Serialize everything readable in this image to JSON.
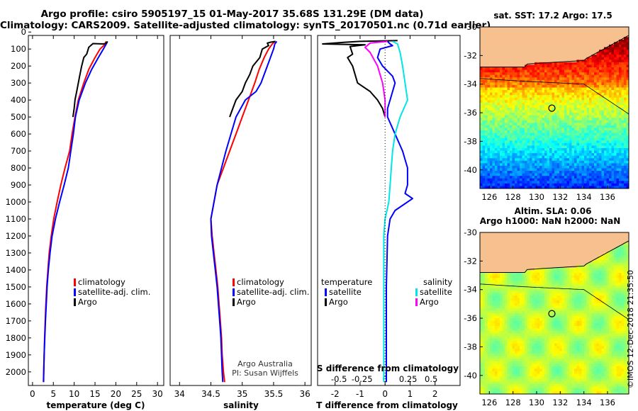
{
  "header": {
    "line1": "Argo profile: csiro 5905197_15 01-May-2017 35.68S 131.29E (DM data)",
    "line2": "Climatology: CARS2009. Satellite-adjusted climatology: synTS_20170501.nc (0.71d earlier)"
  },
  "credits": {
    "line1": "Argo Australia",
    "line2": "PI: Susan Wijffels"
  },
  "stamp": "©IMOS 12-Dec-2018 21:35:50",
  "colors": {
    "argo": "#000000",
    "climatology": "#ff0000",
    "satellite": "#0000ff",
    "sal_satellite": "#00e5e5",
    "sal_argo": "#ff00ff",
    "land": "#f7c08f"
  },
  "chart_data": [
    {
      "type": "line",
      "xlabel": "temperature (deg C)",
      "xlim": [
        -1,
        31.5
      ],
      "xticks": [
        0,
        5,
        10,
        15,
        20,
        25,
        30
      ],
      "ylim": [
        2080,
        20
      ],
      "yticks": [
        0,
        100,
        200,
        300,
        400,
        500,
        600,
        700,
        800,
        900,
        1000,
        1100,
        1200,
        1300,
        1400,
        1500,
        1600,
        1700,
        1800,
        1900,
        2000
      ],
      "legend": [
        "climatology",
        "satellite-adj. clim.",
        "Argo"
      ],
      "series": [
        {
          "name": "climatology",
          "points": [
            [
              17.6,
              55
            ],
            [
              17.5,
              70
            ],
            [
              16.2,
              100
            ],
            [
              15,
              150
            ],
            [
              13.5,
              220
            ],
            [
              12.3,
              300
            ],
            [
              11,
              400
            ],
            [
              10.2,
              500
            ],
            [
              9.5,
              600
            ],
            [
              8.9,
              700
            ],
            [
              7.8,
              800
            ],
            [
              6.8,
              900
            ],
            [
              5.9,
              1000
            ],
            [
              5.1,
              1100
            ],
            [
              4.5,
              1200
            ],
            [
              4.0,
              1300
            ],
            [
              3.7,
              1400
            ],
            [
              3.4,
              1500
            ],
            [
              3.2,
              1600
            ],
            [
              3.05,
              1700
            ],
            [
              2.9,
              1800
            ],
            [
              2.8,
              1900
            ],
            [
              2.7,
              2000
            ],
            [
              2.6,
              2060
            ]
          ]
        },
        {
          "name": "satellite-adj. clim.",
          "points": [
            [
              17.9,
              55
            ],
            [
              17.7,
              70
            ],
            [
              17,
              100
            ],
            [
              15.8,
              150
            ],
            [
              14.2,
              220
            ],
            [
              12.7,
              300
            ],
            [
              11.2,
              400
            ],
            [
              10.3,
              500
            ],
            [
              9.8,
              600
            ],
            [
              9.2,
              700
            ],
            [
              8.6,
              800
            ],
            [
              7.6,
              900
            ],
            [
              6.5,
              1000
            ],
            [
              5.5,
              1100
            ],
            [
              4.7,
              1200
            ],
            [
              4.2,
              1300
            ],
            [
              3.8,
              1400
            ],
            [
              3.5,
              1500
            ],
            [
              3.3,
              1600
            ],
            [
              3.1,
              1700
            ],
            [
              2.95,
              1800
            ],
            [
              2.8,
              1900
            ],
            [
              2.7,
              2000
            ],
            [
              2.65,
              2060
            ]
          ]
        },
        {
          "name": "Argo",
          "points": [
            [
              18,
              55
            ],
            [
              17.8,
              65
            ],
            [
              17,
              70
            ],
            [
              14.5,
              68
            ],
            [
              13.5,
              90
            ],
            [
              13,
              130
            ],
            [
              12.3,
              150
            ],
            [
              11.8,
              200
            ],
            [
              11.3,
              260
            ],
            [
              11,
              300
            ],
            [
              10.6,
              350
            ],
            [
              10.2,
              400
            ],
            [
              10,
              450
            ],
            [
              9.7,
              500
            ]
          ]
        }
      ]
    },
    {
      "type": "line",
      "xlabel": "salinity",
      "xlim": [
        33.85,
        36.1
      ],
      "xticks": [
        34,
        34.5,
        35,
        35.5,
        36
      ],
      "ylim": [
        2080,
        20
      ],
      "legend": [
        "climatology",
        "satellite-adj. clim.",
        "Argo"
      ],
      "series": [
        {
          "name": "climatology",
          "points": [
            [
              35.52,
              55
            ],
            [
              35.48,
              70
            ],
            [
              35.42,
              100
            ],
            [
              35.35,
              150
            ],
            [
              35.27,
              220
            ],
            [
              35.2,
              300
            ],
            [
              35.1,
              400
            ],
            [
              35.0,
              500
            ],
            [
              34.9,
              600
            ],
            [
              34.8,
              700
            ],
            [
              34.7,
              800
            ],
            [
              34.6,
              900
            ],
            [
              34.55,
              1000
            ],
            [
              34.5,
              1100
            ],
            [
              34.52,
              1200
            ],
            [
              34.55,
              1300
            ],
            [
              34.58,
              1400
            ],
            [
              34.61,
              1500
            ],
            [
              34.63,
              1600
            ],
            [
              34.65,
              1700
            ],
            [
              34.67,
              1800
            ],
            [
              34.68,
              1900
            ],
            [
              34.7,
              2000
            ],
            [
              34.72,
              2060
            ]
          ]
        },
        {
          "name": "satellite-adj. clim.",
          "points": [
            [
              35.55,
              55
            ],
            [
              35.52,
              70
            ],
            [
              35.5,
              100
            ],
            [
              35.45,
              150
            ],
            [
              35.38,
              220
            ],
            [
              35.3,
              300
            ],
            [
              35.22,
              350
            ],
            [
              35.05,
              400
            ],
            [
              34.9,
              500
            ],
            [
              34.82,
              600
            ],
            [
              34.74,
              700
            ],
            [
              34.67,
              800
            ],
            [
              34.6,
              900
            ],
            [
              34.55,
              1000
            ],
            [
              34.5,
              1100
            ],
            [
              34.51,
              1200
            ],
            [
              34.54,
              1300
            ],
            [
              34.57,
              1400
            ],
            [
              34.6,
              1500
            ],
            [
              34.62,
              1600
            ],
            [
              34.64,
              1700
            ],
            [
              34.66,
              1800
            ],
            [
              34.67,
              1900
            ],
            [
              34.68,
              2000
            ],
            [
              34.69,
              2060
            ]
          ]
        },
        {
          "name": "Argo",
          "points": [
            [
              35.53,
              55
            ],
            [
              35.45,
              60
            ],
            [
              35.4,
              65
            ],
            [
              35.42,
              80
            ],
            [
              35.32,
              100
            ],
            [
              35.28,
              150
            ],
            [
              35.17,
              200
            ],
            [
              35.12,
              250
            ],
            [
              35.05,
              300
            ],
            [
              35,
              350
            ],
            [
              34.9,
              400
            ],
            [
              34.85,
              450
            ],
            [
              34.8,
              500
            ]
          ]
        }
      ]
    },
    {
      "type": "line",
      "xlabel": "T difference from climatology",
      "xlim": [
        -2.7,
        3.0
      ],
      "xticks": [
        -2,
        -1,
        0,
        1,
        2
      ],
      "ylim": [
        2080,
        20
      ],
      "secondary_xlabel": "S difference from climatology",
      "secondary_xticks": [
        "-0.5",
        "-0.25",
        "0",
        "0.25",
        "0.5"
      ],
      "legend_temperature": {
        "title": "temperature",
        "entries": [
          "satellite",
          "Argo"
        ]
      },
      "legend_salinity": {
        "title": "salinity",
        "entries": [
          "satellite",
          "Argo"
        ]
      },
      "series": [
        {
          "name": "T satellite",
          "points": [
            [
              0.1,
              55
            ],
            [
              0.2,
              70
            ],
            [
              0.3,
              80
            ],
            [
              -0.2,
              100
            ],
            [
              -0.3,
              150
            ],
            [
              -0.1,
              200
            ],
            [
              0.3,
              260
            ],
            [
              0.4,
              300
            ],
            [
              0.3,
              350
            ],
            [
              0.2,
              400
            ],
            [
              0.1,
              450
            ],
            [
              0.1,
              500
            ],
            [
              0.4,
              600
            ],
            [
              0.7,
              700
            ],
            [
              0.9,
              800
            ],
            [
              0.9,
              900
            ],
            [
              0.8,
              950
            ],
            [
              1.1,
              980
            ],
            [
              0.4,
              1050
            ],
            [
              0.2,
              1100
            ],
            [
              0.1,
              1200
            ],
            [
              0.05,
              1500
            ],
            [
              0.05,
              2060
            ]
          ]
        },
        {
          "name": "T Argo",
          "points": [
            [
              0.5,
              50
            ],
            [
              -1,
              55
            ],
            [
              -1.6,
              60
            ],
            [
              -2.5,
              70
            ],
            [
              -0.8,
              75
            ],
            [
              -1.4,
              85
            ],
            [
              -1.3,
              130
            ],
            [
              -1.5,
              150
            ],
            [
              -1.3,
              200
            ],
            [
              -1.2,
              250
            ],
            [
              -1.1,
              300
            ],
            [
              -0.6,
              350
            ],
            [
              -0.3,
              400
            ],
            [
              -0.1,
              450
            ],
            [
              0,
              500
            ]
          ]
        },
        {
          "name": "S satellite",
          "points": [
            [
              0.3,
              55
            ],
            [
              0.5,
              70
            ],
            [
              0.6,
              120
            ],
            [
              0.7,
              200
            ],
            [
              0.8,
              300
            ],
            [
              0.9,
              400
            ],
            [
              0.6,
              500
            ],
            [
              0.4,
              600
            ],
            [
              0.3,
              700
            ],
            [
              0.25,
              800
            ],
            [
              0.2,
              900
            ],
            [
              0.15,
              1000
            ],
            [
              0,
              1100
            ],
            [
              -0.05,
              1200
            ],
            [
              -0.05,
              1500
            ],
            [
              -0.05,
              2060
            ]
          ]
        },
        {
          "name": "S Argo",
          "points": [
            [
              0.1,
              55
            ],
            [
              -0.6,
              65
            ],
            [
              -0.8,
              90
            ],
            [
              -0.6,
              120
            ],
            [
              -0.3,
              200
            ],
            [
              -0.1,
              300
            ],
            [
              0,
              400
            ],
            [
              0,
              500
            ]
          ]
        }
      ]
    },
    {
      "type": "heatmap",
      "title": "sat. SST: 17.2 Argo: 17.5",
      "xlim": [
        125.2,
        137.8
      ],
      "ylim": [
        -41.3,
        -30
      ],
      "xticks": [
        126,
        128,
        130,
        132,
        134,
        136
      ],
      "yticks": [
        -30,
        -32,
        -34,
        -36,
        -38,
        -40
      ],
      "marker": {
        "lon": 131.29,
        "lat": -35.68
      }
    },
    {
      "type": "heatmap",
      "title": "Altim. SLA: 0.06",
      "subtitle": "Argo h1000: NaN h2000: NaN",
      "xlim": [
        125.2,
        137.8
      ],
      "ylim": [
        -41.3,
        -30
      ],
      "xticks": [
        126,
        128,
        130,
        132,
        134,
        136
      ],
      "yticks": [
        -30,
        -32,
        -34,
        -36,
        -38,
        -40
      ],
      "marker": {
        "lon": 131.29,
        "lat": -35.68
      }
    }
  ]
}
